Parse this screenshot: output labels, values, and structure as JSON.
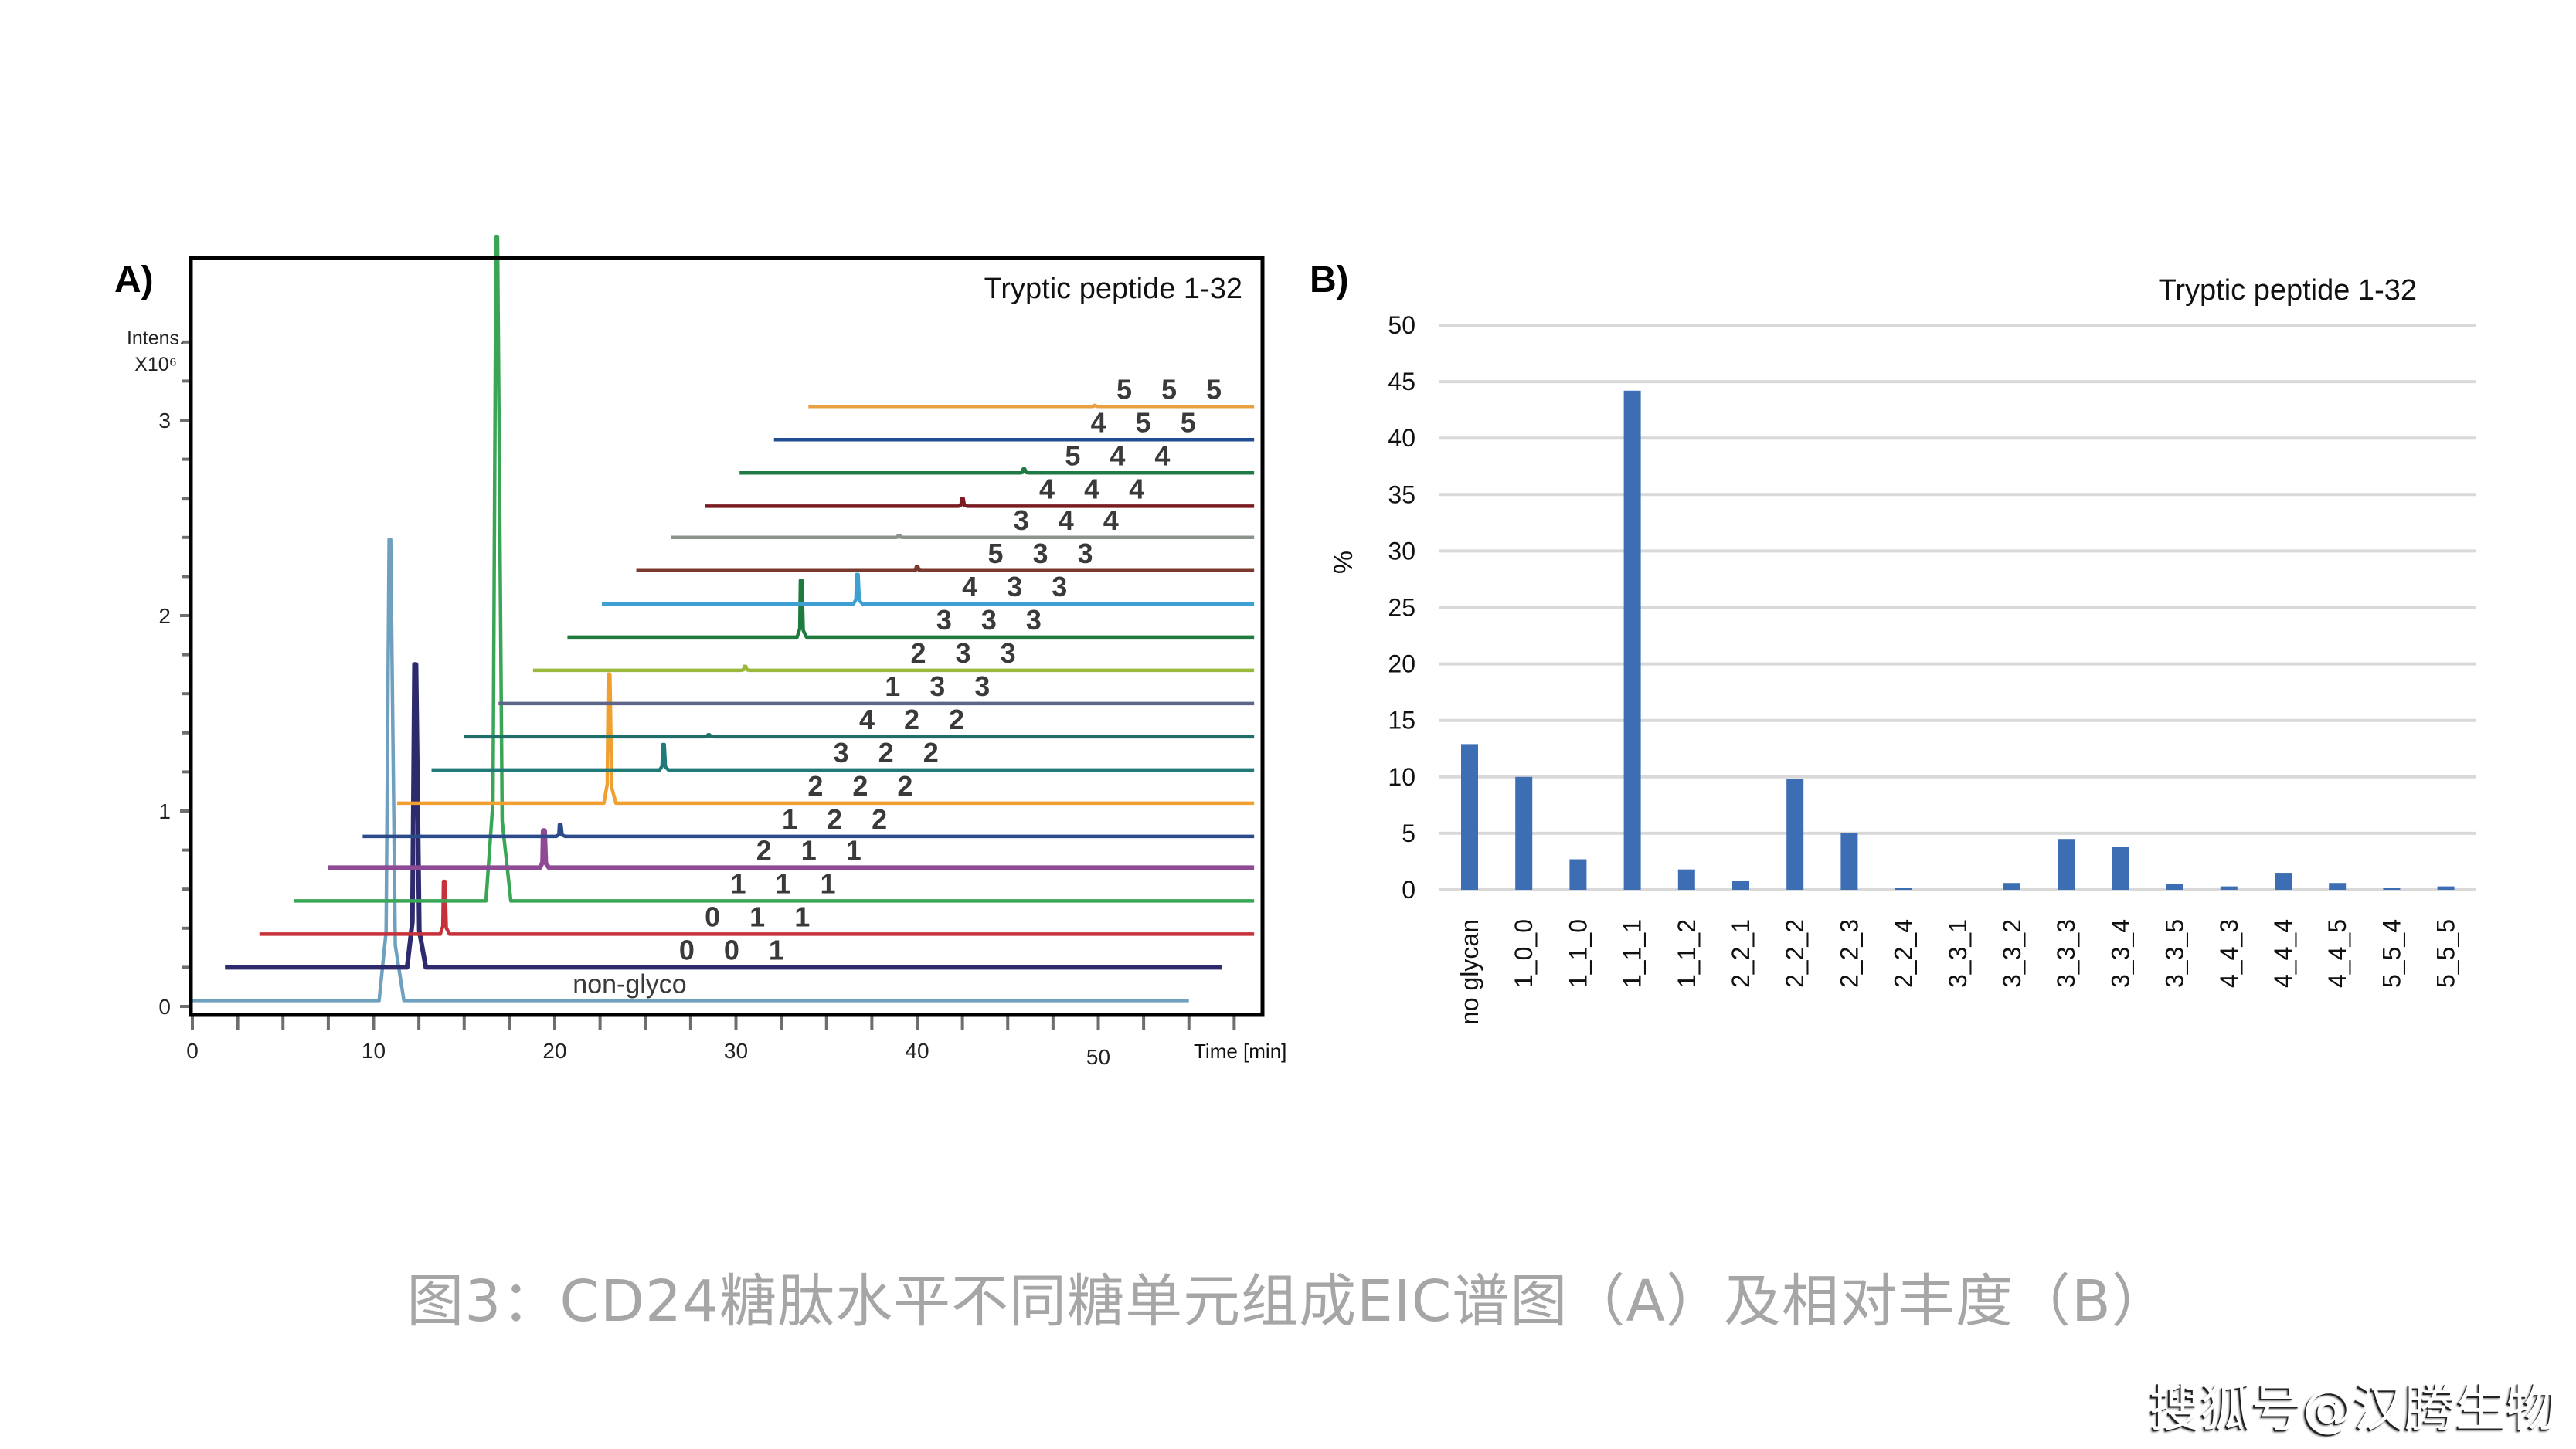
{
  "caption": "图3：CD24糖肽水平不同糖单元组成EIC谱图（A）及相对丰度（B）",
  "watermark": "搜狐号@汉腾生物",
  "chart_data": [
    {
      "panel": "A)",
      "type": "line",
      "subtype": "stacked-offset EIC chromatograms",
      "title": "Tryptic peptide 1-32",
      "xlabel": "Time [min]",
      "ylabel": "Intens. X10^6",
      "ylabel_lines": [
        "Intens.",
        "X10⁶"
      ],
      "xlim": [
        0,
        59
      ],
      "ylim": [
        0,
        3.55
      ],
      "xticks": [
        0,
        10,
        20,
        30,
        40,
        50
      ],
      "yticks": [
        0,
        1,
        2,
        3
      ],
      "grid": false,
      "series": [
        {
          "name": "non-glyco",
          "color": "#6fa0bf",
          "offset": 0.03,
          "start": 0.0,
          "end": 55.0,
          "peaks": [
            {
              "rt": 10.9,
              "height": 2.36
            }
          ]
        },
        {
          "name": "0_0_1",
          "color": "#2e2a6e",
          "offset": 0.2,
          "start": 1.8,
          "end": 56.8,
          "peaks": [
            {
              "rt": 12.3,
              "height": 1.55
            }
          ]
        },
        {
          "name": "0_1_1",
          "color": "#c7323a",
          "offset": 0.37,
          "start": 3.7,
          "end": 58.6,
          "peaks": [
            {
              "rt": 13.9,
              "height": 0.27
            }
          ]
        },
        {
          "name": "1_1_1",
          "color": "#3aa655",
          "offset": 0.54,
          "start": 5.6,
          "end": 58.6,
          "peaks": [
            {
              "rt": 16.8,
              "height": 3.4
            }
          ]
        },
        {
          "name": "2_1_1",
          "color": "#8e4a94",
          "offset": 0.71,
          "start": 7.5,
          "end": 58.6,
          "peaks": [
            {
              "rt": 19.4,
              "height": 0.19
            }
          ]
        },
        {
          "name": "1_2_2",
          "color": "#2a4a8a",
          "offset": 0.87,
          "start": 9.4,
          "end": 58.6,
          "peaks": [
            {
              "rt": 20.3,
              "height": 0.06
            }
          ]
        },
        {
          "name": "2_2_2",
          "color": "#f0a030",
          "offset": 1.04,
          "start": 11.3,
          "end": 58.6,
          "peaks": [
            {
              "rt": 23.0,
              "height": 0.66
            }
          ]
        },
        {
          "name": "3_2_2",
          "color": "#217a7a",
          "offset": 1.21,
          "start": 13.2,
          "end": 58.6,
          "peaks": [
            {
              "rt": 26.0,
              "height": 0.13
            }
          ]
        },
        {
          "name": "4_2_2",
          "color": "#1f6e6a",
          "offset": 1.38,
          "start": 15.0,
          "end": 58.6,
          "peaks": [
            {
              "rt": 28.5,
              "height": 0.01
            }
          ]
        },
        {
          "name": "1_3_3",
          "color": "#5c6488",
          "offset": 1.55,
          "start": 16.9,
          "end": 58.6,
          "peaks": []
        },
        {
          "name": "2_3_3",
          "color": "#9ab83c",
          "offset": 1.72,
          "start": 18.8,
          "end": 58.6,
          "peaks": [
            {
              "rt": 30.5,
              "height": 0.02
            }
          ]
        },
        {
          "name": "3_3_3",
          "color": "#1f7a3e",
          "offset": 1.89,
          "start": 20.7,
          "end": 58.6,
          "peaks": [
            {
              "rt": 33.6,
              "height": 0.29
            }
          ]
        },
        {
          "name": "4_3_3",
          "color": "#3ea0d2",
          "offset": 2.06,
          "start": 22.6,
          "end": 58.6,
          "peaks": [
            {
              "rt": 36.7,
              "height": 0.15
            }
          ]
        },
        {
          "name": "5_3_3",
          "color": "#7a3a2e",
          "offset": 2.23,
          "start": 24.5,
          "end": 58.6,
          "peaks": [
            {
              "rt": 40.0,
              "height": 0.02
            }
          ]
        },
        {
          "name": "3_4_4",
          "color": "#8a948a",
          "offset": 2.4,
          "start": 26.4,
          "end": 58.6,
          "peaks": [
            {
              "rt": 39.0,
              "height": 0.01
            }
          ]
        },
        {
          "name": "4_4_4",
          "color": "#7a1c22",
          "offset": 2.56,
          "start": 28.3,
          "end": 58.6,
          "peaks": [
            {
              "rt": 42.5,
              "height": 0.04
            }
          ]
        },
        {
          "name": "5_4_4",
          "color": "#1f7a44",
          "offset": 2.73,
          "start": 30.2,
          "end": 58.6,
          "peaks": [
            {
              "rt": 45.9,
              "height": 0.02
            }
          ]
        },
        {
          "name": "4_5_5",
          "color": "#214e92",
          "offset": 2.9,
          "start": 32.1,
          "end": 58.6,
          "peaks": []
        },
        {
          "name": "5_5_5",
          "color": "#e8a040",
          "offset": 3.07,
          "start": 34.0,
          "end": 58.6,
          "peaks": [
            {
              "rt": 49.8,
              "height": 0.005
            }
          ]
        }
      ]
    },
    {
      "panel": "B)",
      "type": "bar",
      "title": "Tryptic peptide 1-32",
      "xlabel": "",
      "ylabel": "%",
      "ylim": [
        0,
        50
      ],
      "yticks": [
        0,
        5,
        10,
        15,
        20,
        25,
        30,
        35,
        40,
        45,
        50
      ],
      "grid": true,
      "bar_color": "#3d6db3",
      "categories": [
        "no glycan",
        "1_0_0",
        "1_1_0",
        "1_1_1",
        "1_1_2",
        "2_2_1",
        "2_2_2",
        "2_2_3",
        "2_2_4",
        "3_3_1",
        "3_3_2",
        "3_3_3",
        "3_3_4",
        "3_3_5",
        "4_4_3",
        "4_4_4",
        "4_4_5",
        "5_5_4",
        "5_5_5"
      ],
      "values": [
        12.9,
        10.0,
        2.7,
        44.2,
        1.8,
        0.8,
        9.8,
        5.0,
        0.1,
        0.0,
        0.6,
        4.5,
        3.8,
        0.5,
        0.3,
        1.5,
        0.6,
        0.1,
        0.3
      ]
    }
  ]
}
